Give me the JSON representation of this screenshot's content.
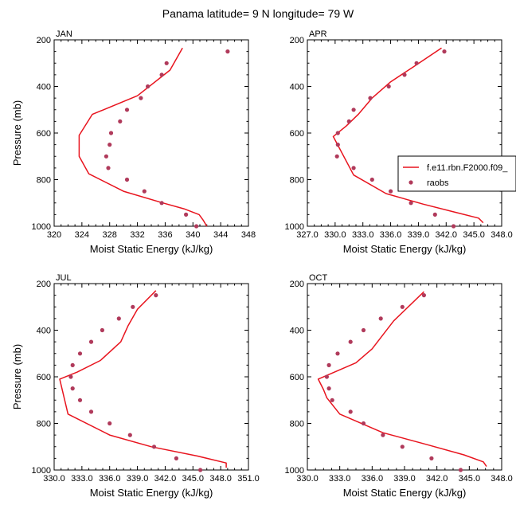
{
  "title": "Panama  latitude= 9 N longitude= 79 W",
  "legend": {
    "model_label": "f.e11.rbn.F2000.f09_",
    "obs_label": "raobs"
  },
  "colors": {
    "model_line": "#e8141e",
    "obs_marker": "#b03a5b",
    "axis": "#000000"
  },
  "chart_data": [
    {
      "type": "scatter",
      "panel_label": "JAN",
      "xlabel": "Moist Static Energy (kJ/kg)",
      "ylabel": "Pressure (mb)",
      "xlim": [
        320,
        348
      ],
      "ylim": [
        1000,
        200
      ],
      "xticks": [
        320,
        324,
        328,
        332,
        336,
        340,
        344,
        348
      ],
      "xtick_labels": [
        "320",
        "324",
        "328",
        "332",
        "336",
        "340",
        "344",
        "348"
      ],
      "yticks": [
        200,
        400,
        600,
        800,
        1000
      ],
      "ytick_labels": [
        "200",
        "400",
        "600",
        "800",
        "1000"
      ],
      "series": [
        {
          "name": "f.e11.rbn.F2000.f09_",
          "kind": "line",
          "x": [
            342.0,
            341.5,
            340.9,
            338.7,
            335.7,
            330.0,
            325.0,
            323.6,
            323.6,
            325.5,
            332.0,
            336.7,
            338.5
          ],
          "y": [
            1000,
            975,
            950,
            925,
            900,
            850,
            775,
            700,
            610,
            520,
            440,
            330,
            235
          ]
        },
        {
          "name": "raobs",
          "kind": "markers",
          "x": [
            340.5,
            339.0,
            335.5,
            333.0,
            330.5,
            327.8,
            327.5,
            328.0,
            328.2,
            329.5,
            330.5,
            332.5,
            333.5,
            335.5,
            336.2,
            345.0
          ],
          "y": [
            1000,
            950,
            900,
            850,
            800,
            750,
            700,
            650,
            600,
            550,
            500,
            450,
            400,
            350,
            300,
            250
          ]
        }
      ]
    },
    {
      "type": "scatter",
      "panel_label": "APR",
      "xlabel": "Moist Static Energy (kJ/kg)",
      "ylabel": "",
      "xlim": [
        327,
        348
      ],
      "ylim": [
        1000,
        200
      ],
      "xticks": [
        327,
        330,
        333,
        336,
        339,
        342,
        345,
        348
      ],
      "xtick_labels": [
        "327.0",
        "330.0",
        "333.0",
        "336.0",
        "339.0",
        "342.0",
        "345.0",
        "348.0"
      ],
      "yticks": [
        200,
        400,
        600,
        800,
        1000
      ],
      "ytick_labels": [
        "200",
        "400",
        "600",
        "800",
        "1000"
      ],
      "series": [
        {
          "name": "f.e11.rbn.F2000.f09_",
          "kind": "line",
          "x": [
            346.0,
            345.5,
            343.0,
            339.5,
            335.5,
            332.0,
            329.8,
            331.2,
            332.5,
            334.0,
            336.0,
            338.5,
            341.5
          ],
          "y": [
            985,
            965,
            940,
            905,
            860,
            780,
            615,
            570,
            520,
            450,
            380,
            315,
            235
          ]
        },
        {
          "name": "raobs",
          "kind": "markers",
          "x": [
            342.8,
            340.8,
            338.2,
            336.0,
            334.0,
            332.0,
            330.2,
            330.3,
            330.3,
            331.5,
            332.0,
            333.8,
            335.8,
            337.5,
            338.8,
            341.8
          ],
          "y": [
            1000,
            950,
            900,
            850,
            800,
            750,
            700,
            650,
            600,
            550,
            500,
            450,
            400,
            350,
            300,
            250
          ]
        }
      ]
    },
    {
      "type": "scatter",
      "panel_label": "JUL",
      "xlabel": "Moist Static Energy (kJ/kg)",
      "ylabel": "Pressure (mb)",
      "xlim": [
        330,
        351
      ],
      "ylim": [
        1000,
        200
      ],
      "xticks": [
        330,
        333,
        336,
        339,
        342,
        345,
        348,
        351
      ],
      "xtick_labels": [
        "330.0",
        "333.0",
        "336.0",
        "339.0",
        "342.0",
        "345.0",
        "348.0",
        "351.0"
      ],
      "yticks": [
        200,
        400,
        600,
        800,
        1000
      ],
      "ytick_labels": [
        "200",
        "400",
        "600",
        "800",
        "1000"
      ],
      "series": [
        {
          "name": "f.e11.rbn.F2000.f09_",
          "kind": "line",
          "x": [
            348.6,
            348.6,
            345.5,
            340.5,
            336.0,
            331.5,
            330.6,
            332.5,
            335.0,
            337.2,
            338.0,
            339.0,
            341.0
          ],
          "y": [
            990,
            970,
            940,
            900,
            850,
            760,
            610,
            580,
            530,
            450,
            380,
            310,
            230
          ]
        },
        {
          "name": "raobs",
          "kind": "markers",
          "x": [
            345.8,
            343.2,
            340.8,
            338.2,
            336.0,
            334.0,
            332.8,
            332.0,
            331.8,
            332.0,
            332.8,
            334.0,
            335.2,
            337.0,
            338.5,
            341.0
          ],
          "y": [
            1000,
            950,
            900,
            850,
            800,
            750,
            700,
            650,
            600,
            550,
            500,
            450,
            400,
            350,
            300,
            250
          ]
        }
      ]
    },
    {
      "type": "scatter",
      "panel_label": "OCT",
      "xlabel": "Moist Static Energy (kJ/kg)",
      "ylabel": "",
      "xlim": [
        330,
        348
      ],
      "ylim": [
        1000,
        200
      ],
      "xticks": [
        330,
        333,
        336,
        339,
        342,
        345,
        348
      ],
      "xtick_labels": [
        "330.0",
        "333.0",
        "336.0",
        "339.0",
        "342.0",
        "345.0",
        "348.0"
      ],
      "yticks": [
        200,
        400,
        600,
        800,
        1000
      ],
      "ytick_labels": [
        "200",
        "400",
        "600",
        "800",
        "1000"
      ],
      "series": [
        {
          "name": "f.e11.rbn.F2000.f09_",
          "kind": "line",
          "x": [
            346.6,
            346.3,
            344.5,
            341.0,
            337.0,
            333.0,
            331.8,
            331.5,
            331.0,
            334.5,
            336.0,
            338.0,
            340.8
          ],
          "y": [
            985,
            965,
            935,
            890,
            840,
            760,
            690,
            655,
            610,
            540,
            480,
            360,
            235
          ]
        },
        {
          "name": "raobs",
          "kind": "markers",
          "x": [
            344.2,
            341.5,
            338.8,
            337.0,
            335.2,
            334.0,
            332.3,
            332.0,
            331.8,
            332.0,
            332.8,
            334.0,
            335.2,
            336.8,
            338.8,
            340.8
          ],
          "y": [
            1000,
            950,
            900,
            850,
            800,
            750,
            700,
            650,
            600,
            550,
            500,
            450,
            400,
            350,
            300,
            250
          ]
        }
      ]
    }
  ]
}
